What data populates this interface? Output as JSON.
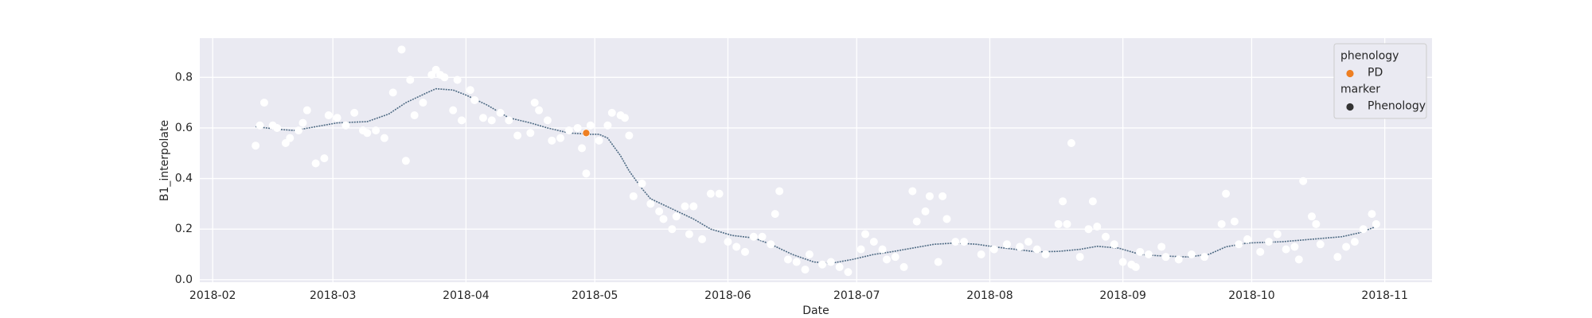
{
  "chart_data": {
    "type": "scatter",
    "xlabel": "Date",
    "ylabel": "B1_interpolate",
    "xlim": [
      "2018-01-29",
      "2018-11-12"
    ],
    "xticks": [
      {
        "value": "2018-02-01",
        "label": "2018-02"
      },
      {
        "value": "2018-03-01",
        "label": "2018-03"
      },
      {
        "value": "2018-04-01",
        "label": "2018-04"
      },
      {
        "value": "2018-05-01",
        "label": "2018-05"
      },
      {
        "value": "2018-06-01",
        "label": "2018-06"
      },
      {
        "value": "2018-07-01",
        "label": "2018-07"
      },
      {
        "value": "2018-08-01",
        "label": "2018-08"
      },
      {
        "value": "2018-09-01",
        "label": "2018-09"
      },
      {
        "value": "2018-10-01",
        "label": "2018-10"
      },
      {
        "value": "2018-11-01",
        "label": "2018-11"
      }
    ],
    "ylim": [
      -0.01,
      0.955
    ],
    "yticks": [
      {
        "value": 0,
        "label": "0.0"
      },
      0.2,
      0.4,
      0.6,
      0.8
    ],
    "grid": true,
    "background": "#eaeaf2",
    "series": [
      {
        "kind": "scatter",
        "color": "#ffffff",
        "x": [
          "2018-02-11",
          "2018-02-12",
          "2018-02-13",
          "2018-02-15",
          "2018-02-16",
          "2018-02-18",
          "2018-02-19",
          "2018-02-21",
          "2018-02-22",
          "2018-02-23",
          "2018-02-25",
          "2018-02-27",
          "2018-02-28",
          "2018-03-02",
          "2018-03-04",
          "2018-03-06",
          "2018-03-08",
          "2018-03-09",
          "2018-03-11",
          "2018-03-13",
          "2018-03-15",
          "2018-03-17",
          "2018-03-18",
          "2018-03-19",
          "2018-03-20",
          "2018-03-22",
          "2018-03-24",
          "2018-03-25",
          "2018-03-26",
          "2018-03-27",
          "2018-03-29",
          "2018-03-30",
          "2018-03-31",
          "2018-04-02",
          "2018-04-03",
          "2018-04-05",
          "2018-04-07",
          "2018-04-09",
          "2018-04-11",
          "2018-04-13",
          "2018-04-16",
          "2018-04-17",
          "2018-04-18",
          "2018-04-20",
          "2018-04-21",
          "2018-04-23",
          "2018-04-25",
          "2018-04-27",
          "2018-04-28",
          "2018-04-29",
          "2018-04-30",
          "2018-05-02",
          "2018-05-04",
          "2018-05-05",
          "2018-05-07",
          "2018-05-08",
          "2018-05-09",
          "2018-05-10",
          "2018-05-12",
          "2018-05-14",
          "2018-05-16",
          "2018-05-17",
          "2018-05-19",
          "2018-05-20",
          "2018-05-22",
          "2018-05-23",
          "2018-05-24",
          "2018-05-26",
          "2018-05-28",
          "2018-05-30",
          "2018-06-01",
          "2018-06-03",
          "2018-06-05",
          "2018-06-07",
          "2018-06-09",
          "2018-06-11",
          "2018-06-12",
          "2018-06-13",
          "2018-06-15",
          "2018-06-17",
          "2018-06-19",
          "2018-06-20",
          "2018-06-23",
          "2018-06-25",
          "2018-06-27",
          "2018-06-29",
          "2018-07-02",
          "2018-07-03",
          "2018-07-05",
          "2018-07-07",
          "2018-07-08",
          "2018-07-10",
          "2018-07-12",
          "2018-07-14",
          "2018-07-15",
          "2018-07-17",
          "2018-07-18",
          "2018-07-20",
          "2018-07-21",
          "2018-07-22",
          "2018-07-24",
          "2018-07-26",
          "2018-07-30",
          "2018-08-02",
          "2018-08-05",
          "2018-08-08",
          "2018-08-10",
          "2018-08-12",
          "2018-08-14",
          "2018-08-17",
          "2018-08-18",
          "2018-08-19",
          "2018-08-20",
          "2018-08-22",
          "2018-08-24",
          "2018-08-25",
          "2018-08-26",
          "2018-08-28",
          "2018-08-30",
          "2018-09-01",
          "2018-09-03",
          "2018-09-04",
          "2018-09-05",
          "2018-09-07",
          "2018-09-10",
          "2018-09-11",
          "2018-09-14",
          "2018-09-17",
          "2018-09-20",
          "2018-09-24",
          "2018-09-25",
          "2018-09-27",
          "2018-09-28",
          "2018-09-30",
          "2018-10-03",
          "2018-10-05",
          "2018-10-07",
          "2018-10-09",
          "2018-10-11",
          "2018-10-12",
          "2018-10-13",
          "2018-10-15",
          "2018-10-16",
          "2018-10-17",
          "2018-10-21",
          "2018-10-23",
          "2018-10-25",
          "2018-10-27",
          "2018-10-29",
          "2018-10-30"
        ],
        "values": [
          0.53,
          0.61,
          0.7,
          0.61,
          0.6,
          0.54,
          0.56,
          0.59,
          0.62,
          0.67,
          0.46,
          0.48,
          0.65,
          0.64,
          0.61,
          0.66,
          0.59,
          0.58,
          0.59,
          0.56,
          0.74,
          0.91,
          0.47,
          0.79,
          0.65,
          0.7,
          0.81,
          0.83,
          0.81,
          0.8,
          0.67,
          0.79,
          0.63,
          0.75,
          0.71,
          0.64,
          0.63,
          0.66,
          0.63,
          0.57,
          0.58,
          0.7,
          0.67,
          0.63,
          0.55,
          0.56,
          0.59,
          0.6,
          0.52,
          0.42,
          0.61,
          0.55,
          0.61,
          0.66,
          0.65,
          0.64,
          0.57,
          0.33,
          0.38,
          0.3,
          0.27,
          0.24,
          0.2,
          0.25,
          0.29,
          0.18,
          0.29,
          0.16,
          0.34,
          0.34,
          0.15,
          0.13,
          0.11,
          0.17,
          0.17,
          0.14,
          0.26,
          0.35,
          0.08,
          0.07,
          0.04,
          0.1,
          0.06,
          0.07,
          0.05,
          0.03,
          0.12,
          0.18,
          0.15,
          0.12,
          0.08,
          0.09,
          0.05,
          0.35,
          0.23,
          0.27,
          0.33,
          0.07,
          0.33,
          0.24,
          0.15,
          0.15,
          0.1,
          0.12,
          0.14,
          0.13,
          0.15,
          0.12,
          0.1,
          0.22,
          0.31,
          0.22,
          0.54,
          0.09,
          0.2,
          0.31,
          0.21,
          0.17,
          0.14,
          0.07,
          0.06,
          0.05,
          0.11,
          0.1,
          0.13,
          0.09,
          0.08,
          0.1,
          0.09,
          0.22,
          0.34,
          0.23,
          0.14,
          0.16,
          0.11,
          0.15,
          0.18,
          0.12,
          0.13,
          0.08,
          0.39,
          0.25,
          0.22,
          0.14,
          0.09,
          0.13,
          0.15,
          0.2,
          0.26,
          0.22
        ]
      },
      {
        "kind": "line",
        "color": "#4f6b84",
        "x": [
          "2018-02-11",
          "2018-02-16",
          "2018-02-20",
          "2018-02-25",
          "2018-03-02",
          "2018-03-09",
          "2018-03-14",
          "2018-03-18",
          "2018-03-23",
          "2018-03-25",
          "2018-03-29",
          "2018-04-01",
          "2018-04-06",
          "2018-04-11",
          "2018-04-16",
          "2018-04-20",
          "2018-04-25",
          "2018-04-30",
          "2018-05-02",
          "2018-05-04",
          "2018-05-07",
          "2018-05-09",
          "2018-05-12",
          "2018-05-14",
          "2018-05-19",
          "2018-05-24",
          "2018-05-28",
          "2018-06-02",
          "2018-06-07",
          "2018-06-11",
          "2018-06-16",
          "2018-06-21",
          "2018-06-25",
          "2018-06-30",
          "2018-07-05",
          "2018-07-09",
          "2018-07-14",
          "2018-07-19",
          "2018-07-24",
          "2018-07-29",
          "2018-08-02",
          "2018-08-07",
          "2018-08-12",
          "2018-08-17",
          "2018-08-22",
          "2018-08-26",
          "2018-08-31",
          "2018-09-05",
          "2018-09-09",
          "2018-09-16",
          "2018-09-21",
          "2018-09-25",
          "2018-09-30",
          "2018-10-08",
          "2018-10-15",
          "2018-10-22",
          "2018-10-26",
          "2018-10-30"
        ],
        "values": [
          0.605,
          0.595,
          0.59,
          0.605,
          0.62,
          0.625,
          0.655,
          0.7,
          0.74,
          0.755,
          0.75,
          0.73,
          0.69,
          0.64,
          0.62,
          0.6,
          0.58,
          0.575,
          0.575,
          0.56,
          0.49,
          0.43,
          0.36,
          0.32,
          0.28,
          0.24,
          0.2,
          0.175,
          0.165,
          0.14,
          0.1,
          0.07,
          0.065,
          0.08,
          0.1,
          0.11,
          0.125,
          0.14,
          0.145,
          0.14,
          0.13,
          0.12,
          0.11,
          0.112,
          0.12,
          0.132,
          0.125,
          0.1,
          0.095,
          0.09,
          0.1,
          0.13,
          0.145,
          0.15,
          0.16,
          0.17,
          0.185,
          0.21
        ]
      },
      {
        "kind": "scatter",
        "color": "#ee7f22",
        "x": [
          "2018-04-29"
        ],
        "values": [
          0.58
        ]
      }
    ],
    "legend": {
      "location": "upper right",
      "groups": [
        {
          "title": "phenology",
          "entries": [
            {
              "name": "PD",
              "color": "#ee7f22"
            }
          ]
        },
        {
          "title": "marker",
          "entries": [
            {
              "name": "Phenology",
              "color": "#333333"
            }
          ]
        }
      ]
    }
  }
}
